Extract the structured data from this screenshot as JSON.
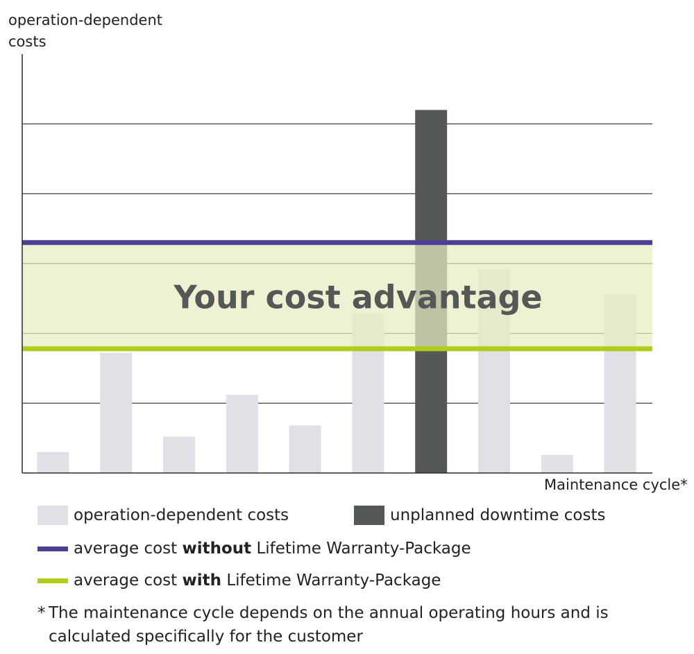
{
  "chart_data": {
    "type": "bar",
    "ylabel": "operation-dependent costs",
    "xlabel": "Maintenance cycle*",
    "ylim": [
      0,
      6
    ],
    "grid": true,
    "annotation": "Your cost advantage",
    "categories": [
      "",
      "",
      "",
      "",
      "",
      "",
      "",
      "",
      "",
      ""
    ],
    "series": [
      {
        "name": "operation-dependent costs",
        "color": "#e0e0e6",
        "values": [
          0.3,
          1.72,
          0.52,
          1.12,
          0.68,
          2.28,
          null,
          2.92,
          0.26,
          2.56
        ]
      },
      {
        "name": "unplanned downtime costs",
        "color": "#545857",
        "values": [
          null,
          null,
          null,
          null,
          null,
          null,
          5.2,
          null,
          null,
          null
        ]
      }
    ],
    "reference_lines": [
      {
        "name": "average cost without Lifetime Warranty-Package",
        "value": 3.3,
        "color": "#4e3f96"
      },
      {
        "name": "average cost with Lifetime Warranty-Package",
        "value": 1.78,
        "color": "#b3cc1a"
      }
    ],
    "band_color": "#e6edc2"
  },
  "legend": {
    "operation_costs": "operation-dependent costs",
    "downtime_costs": "unplanned downtime costs",
    "without_pre": "average cost ",
    "without_bold": "without",
    "without_post": " Lifetime Warranty-Package",
    "with_pre": "average cost ",
    "with_bold": "with",
    "with_post": " Lifetime Warranty-Package"
  },
  "footnote": {
    "star": "*",
    "line1": "The maintenance cycle depends on the annual operating hours and is",
    "line2": "calculated specifically for the customer"
  }
}
